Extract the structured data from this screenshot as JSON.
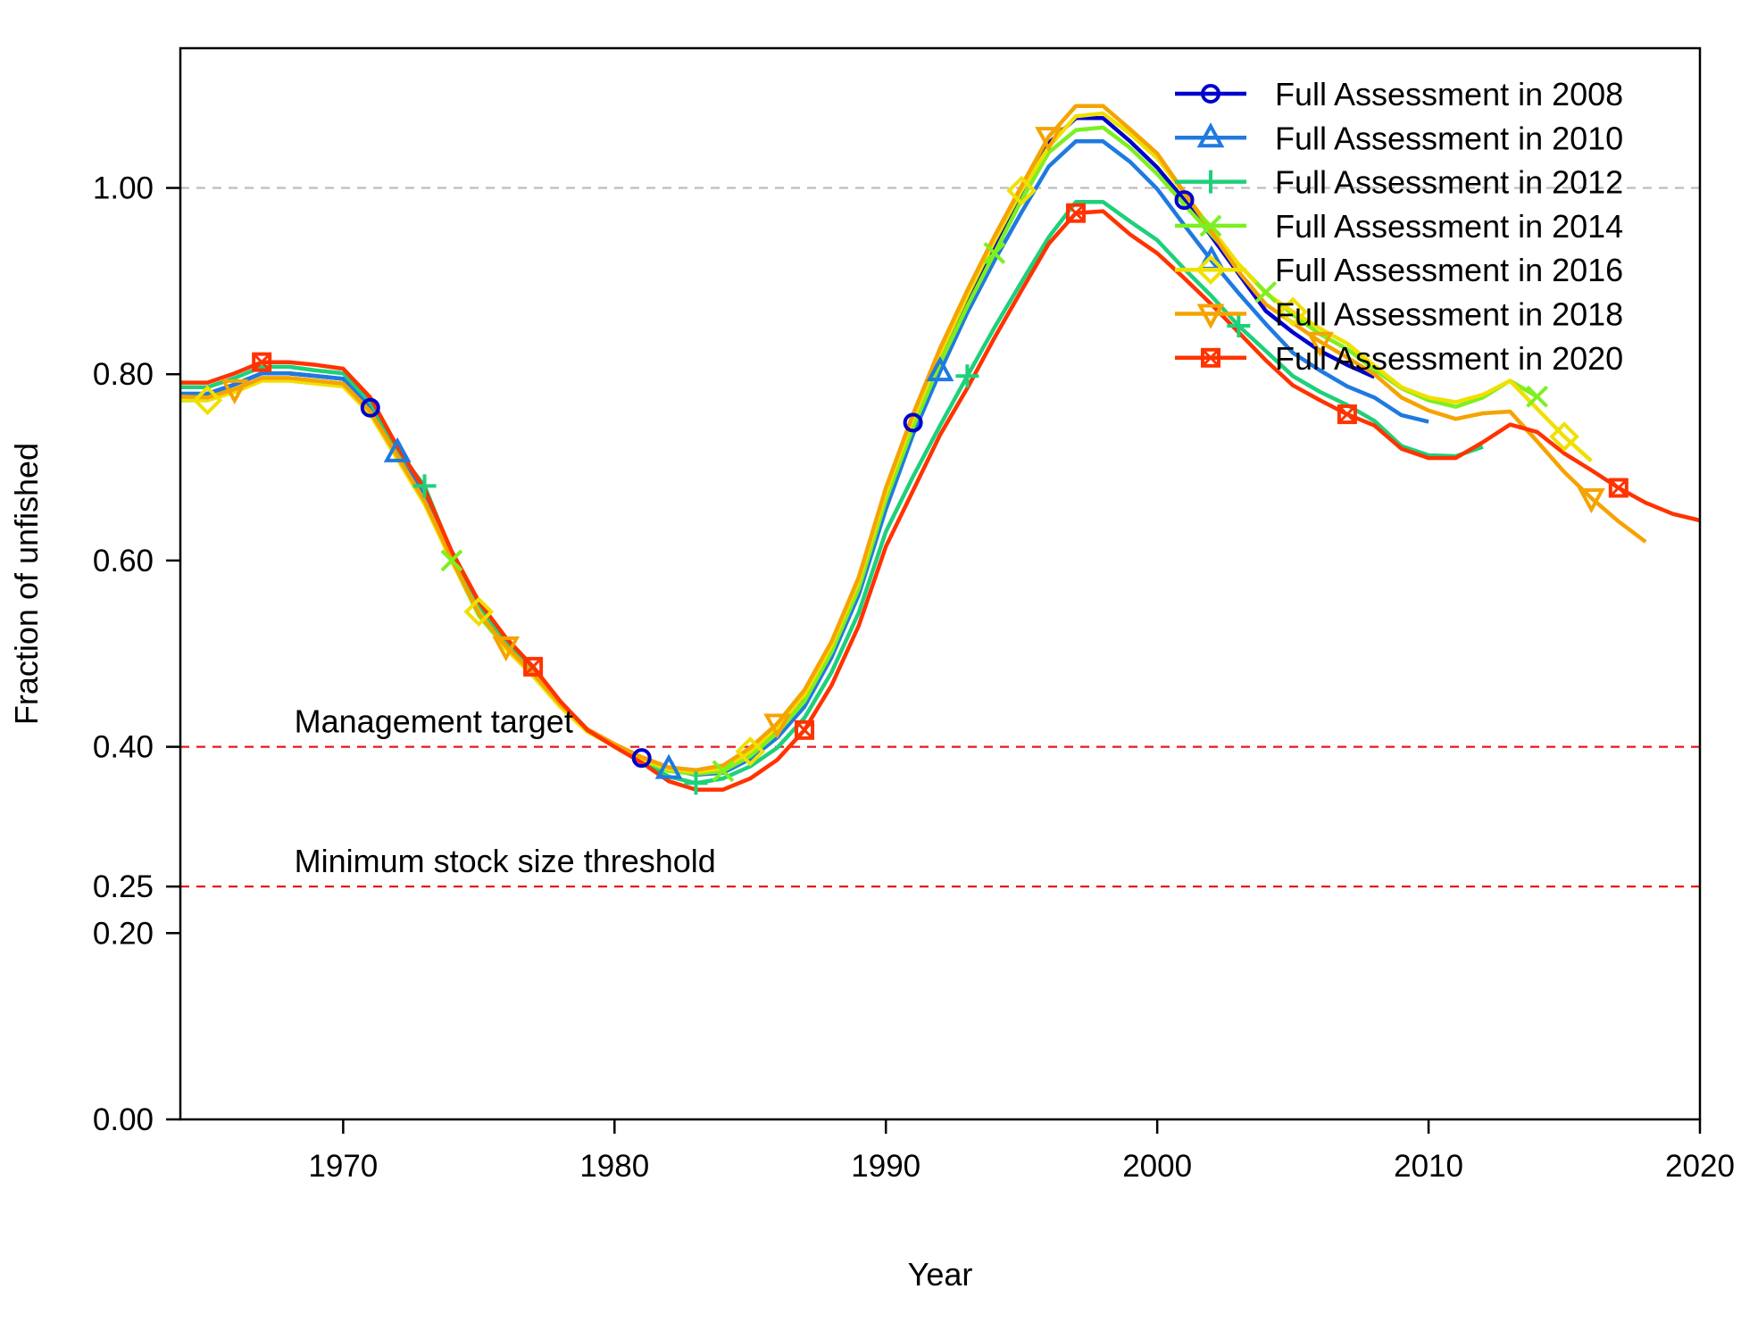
{
  "chart_data": {
    "type": "line",
    "title": "",
    "xlabel": "Year",
    "ylabel": "Fraction of unfished",
    "xlim": [
      1964,
      2020
    ],
    "ylim": [
      0,
      1.15
    ],
    "xticks": [
      1970,
      1980,
      1990,
      2000,
      2010,
      2020
    ],
    "xtick_labels": [
      "1970",
      "1980",
      "1990",
      "2000",
      "2010",
      "2020"
    ],
    "yticks": [
      0,
      0.2,
      0.25,
      0.4,
      0.6,
      0.8,
      1.0
    ],
    "ytick_labels": [
      "0.00",
      "0.20",
      "0.25",
      "0.40",
      "0.60",
      "0.80",
      "1.00"
    ],
    "grid": false,
    "legend_position": "top-right",
    "reference_lines": [
      {
        "y": 1.0,
        "label": "",
        "color": "#bdbdbd",
        "style": "dashed"
      },
      {
        "y": 0.4,
        "label": "Management target",
        "color": "#e31a1c",
        "style": "dashed"
      },
      {
        "y": 0.25,
        "label": "Minimum stock size threshold",
        "color": "#e31a1c",
        "style": "dashed"
      }
    ],
    "series": [
      {
        "name": "Full Assessment in 2008",
        "color": "#0000cc",
        "marker": "circle",
        "x": [
          1964,
          1965,
          1966,
          1967,
          1968,
          1969,
          1970,
          1971,
          1972,
          1973,
          1974,
          1975,
          1976,
          1977,
          1978,
          1979,
          1980,
          1981,
          1982,
          1983,
          1984,
          1985,
          1986,
          1987,
          1988,
          1989,
          1990,
          1991,
          1992,
          1993,
          1994,
          1995,
          1996,
          1997,
          1998,
          1999,
          2000,
          2001,
          2002,
          2003,
          2004,
          2005,
          2006,
          2007,
          2008
        ],
        "y": [
          0.779,
          0.779,
          0.789,
          0.801,
          0.801,
          0.798,
          0.795,
          0.764,
          0.716,
          0.668,
          0.604,
          0.544,
          0.509,
          0.479,
          0.446,
          0.418,
          0.402,
          0.388,
          0.376,
          0.37,
          0.376,
          0.393,
          0.417,
          0.452,
          0.505,
          0.573,
          0.67,
          0.748,
          0.816,
          0.88,
          0.937,
          0.996,
          1.048,
          1.075,
          1.075,
          1.05,
          1.022,
          0.987,
          0.948,
          0.908,
          0.868,
          0.845,
          0.825,
          0.81,
          0.797
        ],
        "marker_x": [
          1971,
          1981,
          1991,
          2001
        ]
      },
      {
        "name": "Full Assessment in 2010",
        "color": "#1f7ae0",
        "marker": "triangle",
        "x": [
          1964,
          1965,
          1966,
          1967,
          1968,
          1969,
          1970,
          1971,
          1972,
          1973,
          1974,
          1975,
          1976,
          1977,
          1978,
          1979,
          1980,
          1981,
          1982,
          1983,
          1984,
          1985,
          1986,
          1987,
          1988,
          1989,
          1990,
          1991,
          1992,
          1993,
          1994,
          1995,
          1996,
          1997,
          1998,
          1999,
          2000,
          2001,
          2002,
          2003,
          2004,
          2005,
          2006,
          2007,
          2008,
          2009,
          2010
        ],
        "y": [
          0.779,
          0.779,
          0.789,
          0.801,
          0.801,
          0.798,
          0.795,
          0.764,
          0.716,
          0.668,
          0.604,
          0.544,
          0.509,
          0.479,
          0.446,
          0.418,
          0.402,
          0.388,
          0.376,
          0.37,
          0.372,
          0.387,
          0.41,
          0.443,
          0.496,
          0.563,
          0.655,
          0.735,
          0.803,
          0.866,
          0.922,
          0.974,
          1.023,
          1.05,
          1.05,
          1.028,
          0.999,
          0.96,
          0.922,
          0.887,
          0.854,
          0.823,
          0.804,
          0.787,
          0.775,
          0.756,
          0.749
        ],
        "marker_x": [
          1972,
          1982,
          1992,
          2002
        ]
      },
      {
        "name": "Full Assessment in 2012",
        "color": "#1ed07a",
        "marker": "plus",
        "x": [
          1964,
          1965,
          1966,
          1967,
          1968,
          1969,
          1970,
          1971,
          1972,
          1973,
          1974,
          1975,
          1976,
          1977,
          1978,
          1979,
          1980,
          1981,
          1982,
          1983,
          1984,
          1985,
          1986,
          1987,
          1988,
          1989,
          1990,
          1991,
          1992,
          1993,
          1994,
          1995,
          1996,
          1997,
          1998,
          1999,
          2000,
          2001,
          2002,
          2003,
          2004,
          2005,
          2006,
          2007,
          2008,
          2009,
          2010,
          2011,
          2012
        ],
        "y": [
          0.786,
          0.786,
          0.796,
          0.808,
          0.808,
          0.804,
          0.801,
          0.77,
          0.718,
          0.68,
          0.608,
          0.55,
          0.514,
          0.484,
          0.448,
          0.419,
          0.401,
          0.385,
          0.368,
          0.361,
          0.366,
          0.379,
          0.399,
          0.431,
          0.48,
          0.544,
          0.631,
          0.69,
          0.745,
          0.798,
          0.85,
          0.899,
          0.947,
          0.985,
          0.985,
          0.964,
          0.944,
          0.913,
          0.884,
          0.852,
          0.825,
          0.798,
          0.781,
          0.767,
          0.75,
          0.723,
          0.713,
          0.712,
          0.722
        ],
        "marker_x": [
          1973,
          1983,
          1993,
          2003
        ]
      },
      {
        "name": "Full Assessment in 2014",
        "color": "#7cf020",
        "marker": "cross",
        "x": [
          1964,
          1965,
          1966,
          1967,
          1968,
          1969,
          1970,
          1971,
          1972,
          1973,
          1974,
          1975,
          1976,
          1977,
          1978,
          1979,
          1980,
          1981,
          1982,
          1983,
          1984,
          1985,
          1986,
          1987,
          1988,
          1989,
          1990,
          1991,
          1992,
          1993,
          1994,
          1995,
          1996,
          1997,
          1998,
          1999,
          2000,
          2001,
          2002,
          2003,
          2004,
          2005,
          2006,
          2007,
          2008,
          2009,
          2010,
          2011,
          2012,
          2013,
          2014
        ],
        "y": [
          0.772,
          0.772,
          0.782,
          0.794,
          0.794,
          0.791,
          0.788,
          0.758,
          0.71,
          0.662,
          0.6,
          0.541,
          0.506,
          0.477,
          0.444,
          0.417,
          0.401,
          0.386,
          0.374,
          0.371,
          0.374,
          0.39,
          0.415,
          0.449,
          0.502,
          0.57,
          0.665,
          0.743,
          0.812,
          0.873,
          0.93,
          0.987,
          1.038,
          1.062,
          1.065,
          1.043,
          1.015,
          0.982,
          0.95,
          0.918,
          0.888,
          0.864,
          0.843,
          0.827,
          0.805,
          0.785,
          0.772,
          0.765,
          0.775,
          0.793,
          0.776
        ],
        "marker_x": [
          1974,
          1984,
          1994,
          2004,
          2014
        ]
      },
      {
        "name": "Full Assessment in 2016",
        "color": "#f0e000",
        "marker": "diamond",
        "x": [
          1964,
          1965,
          1966,
          1967,
          1968,
          1969,
          1970,
          1971,
          1972,
          1973,
          1974,
          1975,
          1976,
          1977,
          1978,
          1979,
          1980,
          1981,
          1982,
          1983,
          1984,
          1985,
          1986,
          1987,
          1988,
          1989,
          1990,
          1991,
          1992,
          1993,
          1994,
          1995,
          1996,
          1997,
          1998,
          1999,
          2000,
          2001,
          2002,
          2003,
          2004,
          2005,
          2006,
          2007,
          2008,
          2009,
          2010,
          2011,
          2012,
          2013,
          2014,
          2015,
          2016
        ],
        "y": [
          0.773,
          0.772,
          0.781,
          0.793,
          0.793,
          0.79,
          0.787,
          0.757,
          0.709,
          0.661,
          0.599,
          0.545,
          0.505,
          0.476,
          0.443,
          0.416,
          0.401,
          0.387,
          0.376,
          0.373,
          0.377,
          0.395,
          0.421,
          0.456,
          0.509,
          0.578,
          0.673,
          0.752,
          0.822,
          0.884,
          0.943,
          0.997,
          1.044,
          1.077,
          1.08,
          1.058,
          1.032,
          0.994,
          0.956,
          0.918,
          0.887,
          0.867,
          0.849,
          0.833,
          0.809,
          0.786,
          0.775,
          0.77,
          0.778,
          0.793,
          0.763,
          0.733,
          0.707
        ],
        "marker_x": [
          1965,
          1975,
          1985,
          1995,
          2005,
          2015
        ]
      },
      {
        "name": "Full Assessment in 2018",
        "color": "#f5a300",
        "marker": "triangle-down",
        "x": [
          1964,
          1965,
          1966,
          1967,
          1968,
          1969,
          1970,
          1971,
          1972,
          1973,
          1974,
          1975,
          1976,
          1977,
          1978,
          1979,
          1980,
          1981,
          1982,
          1983,
          1984,
          1985,
          1986,
          1987,
          1988,
          1989,
          1990,
          1991,
          1992,
          1993,
          1994,
          1995,
          1996,
          1997,
          1998,
          1999,
          2000,
          2001,
          2002,
          2003,
          2004,
          2005,
          2006,
          2007,
          2008,
          2009,
          2010,
          2011,
          2012,
          2013,
          2014,
          2015,
          2016,
          2017,
          2018
        ],
        "y": [
          0.776,
          0.775,
          0.784,
          0.796,
          0.796,
          0.793,
          0.79,
          0.76,
          0.712,
          0.664,
          0.602,
          0.543,
          0.508,
          0.479,
          0.446,
          0.419,
          0.403,
          0.389,
          0.378,
          0.375,
          0.38,
          0.399,
          0.425,
          0.461,
          0.513,
          0.582,
          0.678,
          0.757,
          0.828,
          0.89,
          0.948,
          1.002,
          1.055,
          1.088,
          1.088,
          1.063,
          1.037,
          0.995,
          0.953,
          0.91,
          0.875,
          0.855,
          0.835,
          0.818,
          0.8,
          0.775,
          0.761,
          0.752,
          0.758,
          0.76,
          0.728,
          0.695,
          0.667,
          0.642,
          0.62
        ],
        "marker_x": [
          1966,
          1976,
          1986,
          1996,
          2006,
          2016
        ]
      },
      {
        "name": "Full Assessment in 2020",
        "color": "#ff3300",
        "marker": "square",
        "x": [
          1964,
          1965,
          1966,
          1967,
          1968,
          1969,
          1970,
          1971,
          1972,
          1973,
          1974,
          1975,
          1976,
          1977,
          1978,
          1979,
          1980,
          1981,
          1982,
          1983,
          1984,
          1985,
          1986,
          1987,
          1988,
          1989,
          1990,
          1991,
          1992,
          1993,
          1994,
          1995,
          1996,
          1997,
          1998,
          1999,
          2000,
          2001,
          2002,
          2003,
          2004,
          2005,
          2006,
          2007,
          2008,
          2009,
          2010,
          2011,
          2012,
          2013,
          2014,
          2015,
          2016,
          2017,
          2018,
          2019,
          2020
        ],
        "y": [
          0.791,
          0.791,
          0.801,
          0.813,
          0.813,
          0.81,
          0.806,
          0.775,
          0.722,
          0.677,
          0.61,
          0.556,
          0.517,
          0.486,
          0.449,
          0.418,
          0.4,
          0.383,
          0.363,
          0.354,
          0.354,
          0.366,
          0.386,
          0.418,
          0.466,
          0.53,
          0.615,
          0.675,
          0.735,
          0.785,
          0.839,
          0.89,
          0.94,
          0.973,
          0.975,
          0.95,
          0.93,
          0.903,
          0.875,
          0.845,
          0.815,
          0.788,
          0.772,
          0.757,
          0.745,
          0.72,
          0.71,
          0.71,
          0.727,
          0.746,
          0.738,
          0.715,
          0.697,
          0.678,
          0.662,
          0.65,
          0.643
        ],
        "marker_x": [
          1967,
          1977,
          1987,
          1997,
          2007,
          2017
        ]
      }
    ]
  }
}
